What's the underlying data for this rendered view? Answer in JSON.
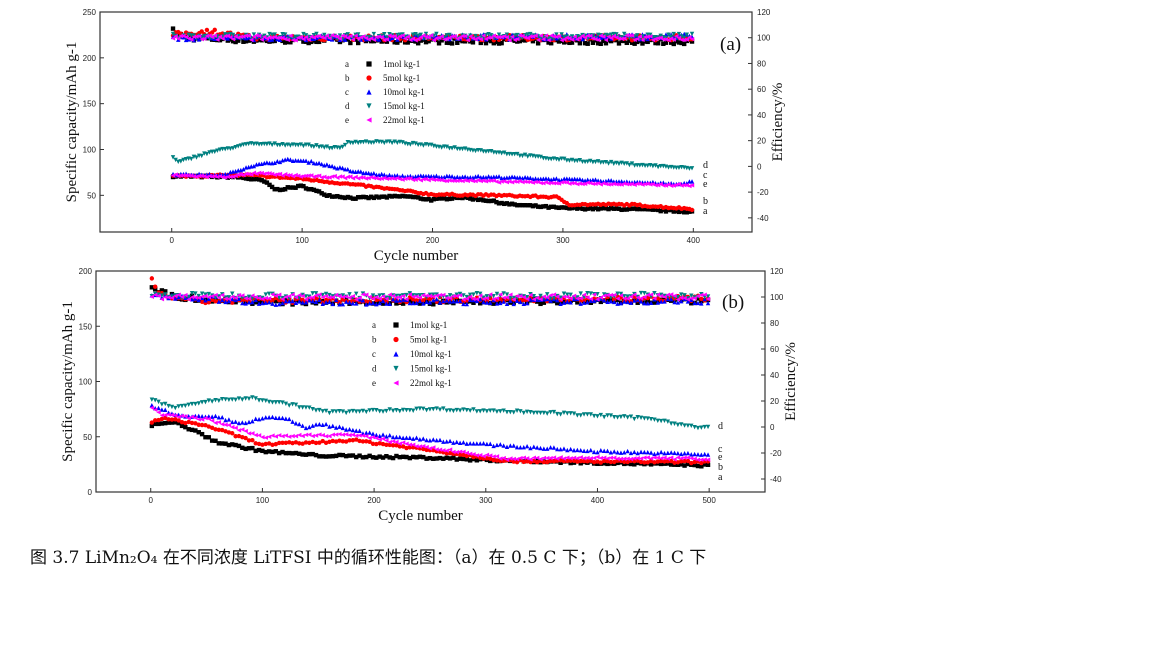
{
  "caption": "图 3.7 LiMn₂O₄ 在不同浓度 LiTFSI 中的循环性能图：（a）在 0.5 C 下；（b）在 1 C 下",
  "chart_data": [
    {
      "type": "scatter",
      "panel_label": "(a)",
      "xlabel": "Cycle number",
      "ylabel": "Specific capacity/mAh g-1",
      "ylabel2": "Efficiency/%",
      "xlim": [
        -55,
        445
      ],
      "ylim": [
        10,
        250
      ],
      "ylim2": [
        -51,
        120
      ],
      "xticks": [
        0,
        100,
        200,
        300,
        400
      ],
      "yticks": [
        50,
        100,
        150,
        200,
        250
      ],
      "yticks2": [
        -40,
        -20,
        0,
        20,
        40,
        60,
        80,
        100,
        120
      ],
      "legend_position": "center",
      "series": [
        {
          "letter": "a",
          "name": "1mol kg-1",
          "color": "#000000",
          "marker": "square",
          "capacity": [
            [
              0,
              71
            ],
            [
              50,
              70
            ],
            [
              70,
              66
            ],
            [
              80,
              56
            ],
            [
              100,
              60
            ],
            [
              120,
              50
            ],
            [
              140,
              47
            ],
            [
              180,
              49
            ],
            [
              200,
              45
            ],
            [
              220,
              48
            ],
            [
              240,
              45
            ],
            [
              260,
              40
            ],
            [
              300,
              36
            ],
            [
              350,
              35
            ],
            [
              400,
              32
            ]
          ],
          "efficiency": [
            [
              0,
              106
            ],
            [
              10,
              100
            ],
            [
              60,
              98
            ],
            [
              400,
              97
            ]
          ]
        },
        {
          "letter": "b",
          "name": "5mol kg-1",
          "color": "#ff0000",
          "marker": "circle",
          "capacity": [
            [
              0,
              71
            ],
            [
              60,
              72
            ],
            [
              100,
              68
            ],
            [
              150,
              60
            ],
            [
              200,
              51
            ],
            [
              250,
              50
            ],
            [
              295,
              48
            ],
            [
              305,
              40
            ],
            [
              350,
              40
            ],
            [
              400,
              35
            ]
          ],
          "efficiency": [
            [
              0,
              102
            ],
            [
              30,
              105
            ],
            [
              60,
              100
            ],
            [
              400,
              100
            ]
          ]
        },
        {
          "letter": "c",
          "name": "10mol kg-1",
          "color": "#0000ff",
          "marker": "triangle-up",
          "capacity": [
            [
              0,
              73
            ],
            [
              40,
              72
            ],
            [
              60,
              82
            ],
            [
              90,
              89
            ],
            [
              110,
              86
            ],
            [
              140,
              76
            ],
            [
              170,
              71
            ],
            [
              250,
              70
            ],
            [
              350,
              65
            ],
            [
              390,
              62
            ],
            [
              400,
              66
            ]
          ],
          "efficiency": [
            [
              0,
              100
            ],
            [
              400,
              101
            ]
          ]
        },
        {
          "letter": "d",
          "name": "15mol kg-1",
          "color": "#008080",
          "marker": "triangle-down",
          "capacity": [
            [
              0,
              92
            ],
            [
              5,
              86
            ],
            [
              30,
              97
            ],
            [
              60,
              106
            ],
            [
              100,
              105
            ],
            [
              130,
              101
            ],
            [
              135,
              108
            ],
            [
              170,
              108
            ],
            [
              200,
              104
            ],
            [
              250,
              97
            ],
            [
              290,
              90
            ],
            [
              330,
              86
            ],
            [
              400,
              79
            ]
          ],
          "efficiency": [
            [
              0,
              101
            ],
            [
              400,
              101
            ]
          ]
        },
        {
          "letter": "e",
          "name": "22mol kg-1",
          "color": "#ff00ff",
          "marker": "triangle-left",
          "capacity": [
            [
              0,
              72
            ],
            [
              40,
              70
            ],
            [
              65,
              74
            ],
            [
              100,
              71
            ],
            [
              150,
              69
            ],
            [
              250,
              65
            ],
            [
              350,
              62
            ],
            [
              400,
              61
            ]
          ],
          "efficiency": [
            [
              0,
              100
            ],
            [
              400,
              100
            ]
          ]
        }
      ]
    },
    {
      "type": "scatter",
      "panel_label": "(b)",
      "xlabel": "Cycle number",
      "ylabel": "Specific capacity/mAh g-1",
      "ylabel2": "Efficiency/%",
      "xlim": [
        -49,
        550
      ],
      "ylim": [
        0,
        200
      ],
      "ylim2": [
        -50,
        120
      ],
      "xticks": [
        0,
        100,
        200,
        300,
        400,
        500
      ],
      "yticks": [
        0,
        50,
        100,
        150,
        200
      ],
      "yticks2": [
        -40,
        -20,
        0,
        20,
        40,
        60,
        80,
        100,
        120
      ],
      "legend_position": "center",
      "series": [
        {
          "letter": "a",
          "name": "1mol kg-1",
          "color": "#000000",
          "marker": "square",
          "capacity": [
            [
              0,
              60
            ],
            [
              15,
              63
            ],
            [
              25,
              62
            ],
            [
              60,
              45
            ],
            [
              100,
              37
            ],
            [
              150,
              33
            ],
            [
              250,
              31
            ],
            [
              300,
              29
            ],
            [
              500,
              24
            ]
          ],
          "efficiency": [
            [
              0,
              108
            ],
            [
              20,
              100
            ],
            [
              100,
              96
            ],
            [
              500,
              97
            ]
          ]
        },
        {
          "letter": "b",
          "name": "5mol kg-1",
          "color": "#ff0000",
          "marker": "circle",
          "capacity": [
            [
              0,
              62
            ],
            [
              10,
              67
            ],
            [
              50,
              60
            ],
            [
              100,
              43
            ],
            [
              150,
              45
            ],
            [
              180,
              47
            ],
            [
              250,
              38
            ],
            [
              320,
              28
            ],
            [
              500,
              27
            ]
          ],
          "efficiency": [
            [
              0,
              115
            ],
            [
              5,
              104
            ],
            [
              30,
              97
            ],
            [
              500,
              99
            ]
          ]
        },
        {
          "letter": "c",
          "name": "10mol kg-1",
          "color": "#0000ff",
          "marker": "triangle-up",
          "capacity": [
            [
              0,
              78
            ],
            [
              30,
              68
            ],
            [
              60,
              68
            ],
            [
              80,
              62
            ],
            [
              100,
              67
            ],
            [
              120,
              67
            ],
            [
              140,
              58
            ],
            [
              150,
              62
            ],
            [
              200,
              52
            ],
            [
              300,
              43
            ],
            [
              400,
              37
            ],
            [
              500,
              34
            ]
          ],
          "efficiency": [
            [
              0,
              102
            ],
            [
              100,
              96
            ],
            [
              500,
              97
            ]
          ]
        },
        {
          "letter": "d",
          "name": "15mol kg-1",
          "color": "#008080",
          "marker": "triangle-down",
          "capacity": [
            [
              0,
              84
            ],
            [
              20,
              76
            ],
            [
              50,
              82
            ],
            [
              90,
              85
            ],
            [
              130,
              78
            ],
            [
              160,
              72
            ],
            [
              250,
              75
            ],
            [
              350,
              72
            ],
            [
              450,
              66
            ],
            [
              490,
              58
            ],
            [
              500,
              58
            ]
          ],
          "efficiency": [
            [
              0,
              101
            ],
            [
              500,
              101
            ]
          ]
        },
        {
          "letter": "e",
          "name": "22mol kg-1",
          "color": "#ff00ff",
          "marker": "triangle-left",
          "capacity": [
            [
              0,
              77
            ],
            [
              10,
              70
            ],
            [
              50,
              66
            ],
            [
              100,
              50
            ],
            [
              180,
              52
            ],
            [
              250,
              40
            ],
            [
              320,
              30
            ],
            [
              400,
              31
            ],
            [
              500,
              30
            ]
          ],
          "efficiency": [
            [
              0,
              100
            ],
            [
              500,
              100
            ]
          ]
        }
      ]
    }
  ]
}
